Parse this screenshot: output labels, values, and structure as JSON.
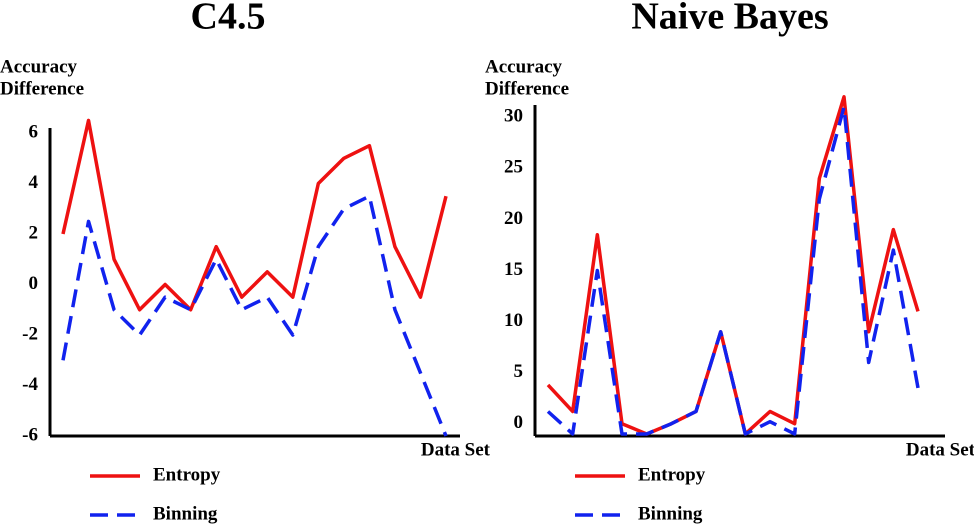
{
  "chart_data": [
    {
      "type": "line",
      "title": "C4.5",
      "ylabel": [
        "Accuracy",
        "Difference"
      ],
      "xlabel": "Data Set",
      "categories": [
        null,
        null,
        null,
        null,
        null,
        null,
        null,
        null,
        null,
        null,
        null,
        null,
        null,
        null,
        null,
        null
      ],
      "series": [
        {
          "name": "Entropy",
          "color": "#ee1111",
          "dash": false,
          "values": [
            2,
            6.5,
            1,
            -1,
            0,
            -1,
            1.5,
            -0.5,
            0.5,
            -0.5,
            4,
            5,
            5.5,
            1.5,
            -0.5,
            3.5
          ]
        },
        {
          "name": "Binning",
          "color": "#1122ee",
          "dash": true,
          "values": [
            -3,
            2.5,
            -1,
            -2,
            -0.5,
            -1,
            1,
            -1,
            -0.5,
            -2,
            1.5,
            3,
            3.5,
            -1,
            -3.5,
            -6
          ]
        }
      ],
      "ylim": [
        -6,
        6.2
      ],
      "yticks": [
        -6,
        -4,
        -2,
        0,
        2,
        4,
        6
      ],
      "legend": "bottom"
    },
    {
      "type": "line",
      "title": "Naive Bayes",
      "ylabel": [
        "Accuracy",
        "Difference"
      ],
      "xlabel": "Data Set",
      "categories": [
        null,
        null,
        null,
        null,
        null,
        null,
        null,
        null,
        null,
        null,
        null,
        null,
        null,
        null,
        null,
        null
      ],
      "series": [
        {
          "name": "Entropy",
          "color": "#ee1111",
          "dash": false,
          "values": [
            3.8,
            1.2,
            18.5,
            0,
            -1,
            0,
            1.2,
            9,
            -1,
            1.2,
            0,
            24,
            32,
            9,
            19,
            11
          ]
        },
        {
          "name": "Binning",
          "color": "#1122ee",
          "dash": true,
          "values": [
            1.2,
            -1,
            15,
            -1,
            -1,
            0,
            1.2,
            9,
            -1,
            0.2,
            -1,
            22,
            31,
            6,
            17,
            3.5
          ]
        }
      ],
      "ylim": [
        -1.2,
        31.2
      ],
      "yticks": [
        0,
        5,
        10,
        15,
        20,
        25,
        30
      ],
      "legend": "bottom"
    }
  ]
}
